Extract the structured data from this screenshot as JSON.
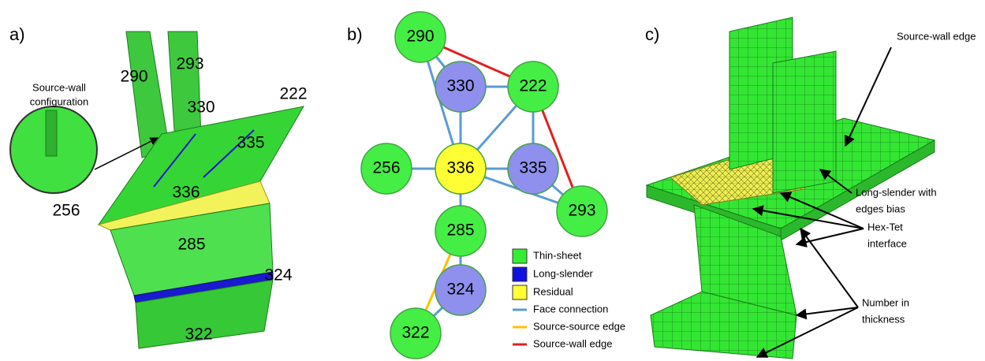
{
  "panel_a": {
    "label": "a)",
    "faces": [
      "290",
      "293",
      "222",
      "330",
      "335",
      "336",
      "256",
      "285",
      "324",
      "322"
    ],
    "callout": [
      "Source-wall",
      "configuration"
    ]
  },
  "panel_b": {
    "label": "b)",
    "nodes": [
      {
        "label": "290"
      },
      {
        "label": "330"
      },
      {
        "label": "222"
      },
      {
        "label": "256"
      },
      {
        "label": "336"
      },
      {
        "label": "335"
      },
      {
        "label": "293"
      },
      {
        "label": "285"
      },
      {
        "label": "324"
      },
      {
        "label": "322"
      }
    ],
    "legend": [
      "Thin-sheet",
      "Long-slender",
      "Residual",
      "Face connection",
      "Source-source edge",
      "Source-wall edge"
    ]
  },
  "panel_c": {
    "label": "c)",
    "annotations": [
      [
        "Source-wall edge"
      ],
      [
        "Long-slender with",
        "edges bias"
      ],
      [
        "Hex-Tet",
        "interface"
      ],
      [
        "Number in",
        "thickness"
      ]
    ]
  }
}
